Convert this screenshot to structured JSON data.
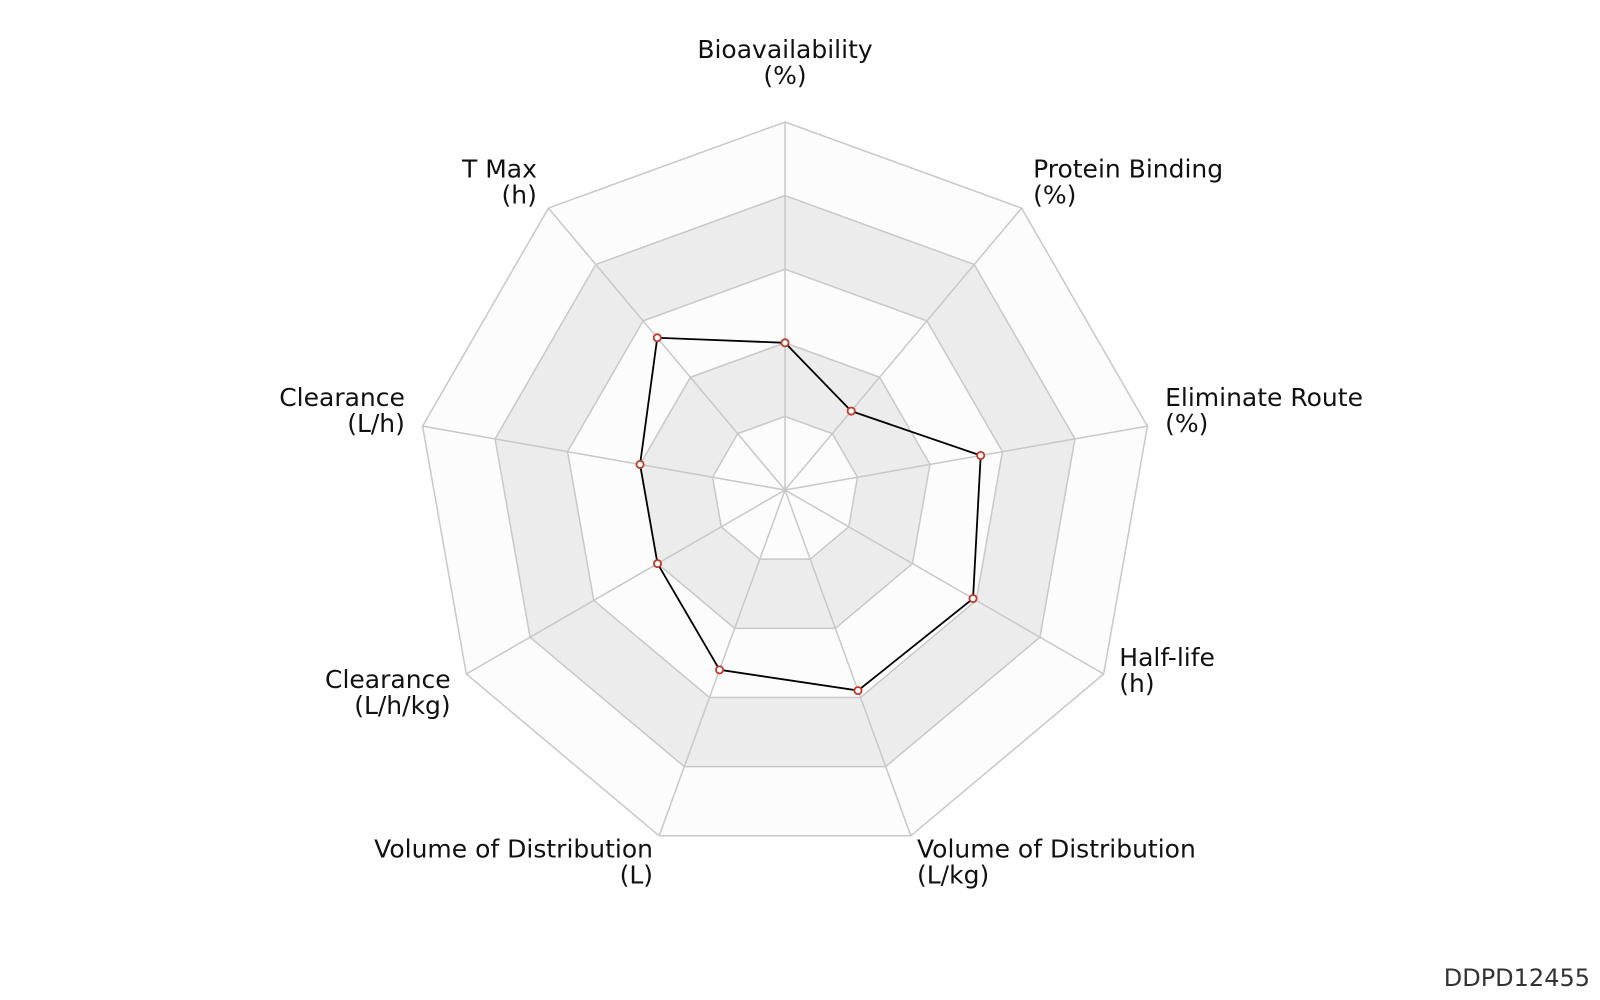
{
  "chart_data": {
    "type": "radar",
    "axes": [
      {
        "name": "Bioavailability",
        "unit": "(%)",
        "value": 0.4
      },
      {
        "name": "Protein Binding",
        "unit": "(%)",
        "value": 0.28
      },
      {
        "name": "Eliminate Route",
        "unit": "(%)",
        "value": 0.54
      },
      {
        "name": "Half-life",
        "unit": "(h)",
        "value": 0.59
      },
      {
        "name": "Volume of Distribution",
        "unit": "(L/kg)",
        "value": 0.58
      },
      {
        "name": "Volume of Distribution",
        "unit": "(L)",
        "value": 0.52
      },
      {
        "name": "Clearance",
        "unit": "(L/h/kg)",
        "value": 0.4
      },
      {
        "name": "Clearance",
        "unit": "(L/h)",
        "value": 0.4
      },
      {
        "name": "T Max",
        "unit": "(h)",
        "value": 0.54
      }
    ],
    "range": [
      0,
      1
    ],
    "rings": 5,
    "colors": {
      "band_light": "#fcfcfc",
      "band_dark": "#ececec",
      "grid_line": "#c8c8c8",
      "series_line": "#000000",
      "marker_edge": "#c0392b",
      "marker_fill": "#ffffff"
    }
  },
  "watermark": "DDPD12455"
}
